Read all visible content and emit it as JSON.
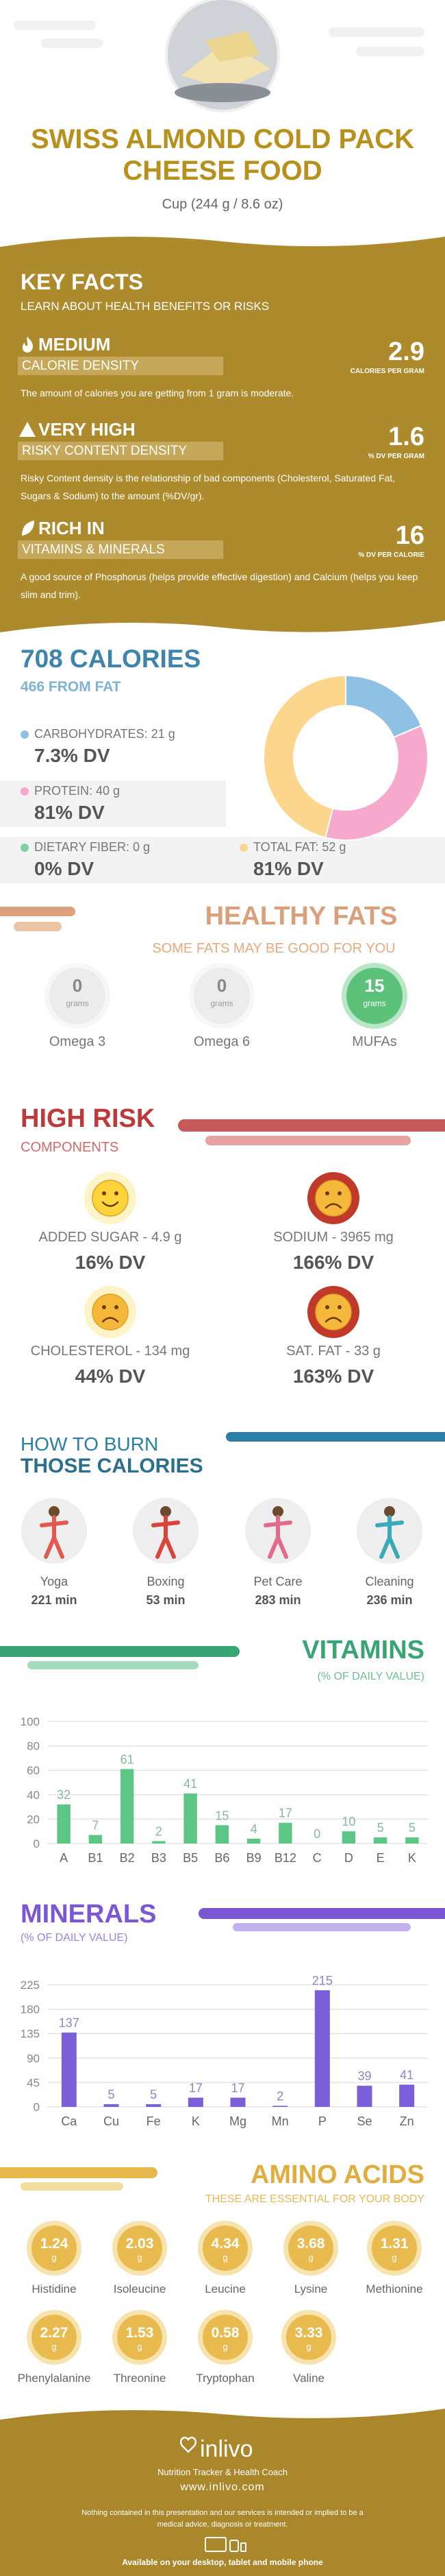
{
  "header": {
    "title": "SWISS ALMOND COLD PACK CHEESE FOOD",
    "subtitle": "Cup (244 g / 8.6 oz)"
  },
  "key_facts": {
    "title": "KEY FACTS",
    "subtitle": "LEARN ABOUT HEALTH BENEFITS OR RISKS",
    "items": [
      {
        "level": "MEDIUM",
        "label": "CALORIE DENSITY",
        "value": 2.9,
        "unit": "CALORIES PER GRAM",
        "text": "The amount of calories you are getting from 1 gram is moderate."
      },
      {
        "level": "VERY HIGH",
        "label": "RISKY CONTENT DENSITY",
        "value": 1.6,
        "unit": "% DV PER GRAM",
        "text": "Risky Content density is the relationship of bad components (Cholesterol, Saturated Fat, Sugars & Sodium) to the amount (%DV/gr)."
      },
      {
        "level": "RICH IN",
        "label": "VITAMINS & MINERALS",
        "value": 16,
        "unit": "% DV PER CALORIE",
        "text": "A good source of Phosphorus (helps provide effective digestion) and Calcium (helps you keep slim and trim)."
      }
    ]
  },
  "calories": {
    "title": "708 CALORIES",
    "subtitle": "466 FROM FAT",
    "nutrients": [
      {
        "label": "CARBOHYDRATES: 21 g",
        "dv": "7.3% DV",
        "color": "#8ec1e3"
      },
      {
        "label": "PROTEIN: 40 g",
        "dv": "81% DV",
        "color": "#f7a9cd"
      },
      {
        "label": "DIETARY FIBER: 0 g",
        "dv": "0% DV",
        "color": "#80d0a2"
      },
      {
        "label": "TOTAL FAT: 52 g",
        "dv": "81% DV",
        "color": "#fcd68c"
      }
    ],
    "donut": {
      "values": [
        21,
        40,
        52
      ],
      "colors": [
        "#8ec1e3",
        "#f7a9cd",
        "#fcd68c"
      ]
    }
  },
  "healthy_fats": {
    "title": "HEALTHY FATS",
    "subtitle": "SOME FATS MAY BE GOOD FOR YOU",
    "unit": "grams",
    "items": [
      {
        "value": 0,
        "name": "Omega 3"
      },
      {
        "value": 0,
        "name": "Omega 6"
      },
      {
        "value": 15,
        "name": "MUFAs"
      }
    ]
  },
  "high_risk": {
    "title": "HIGH RISK",
    "subtitle": "COMPONENTS",
    "items": [
      {
        "label": "ADDED SUGAR - 4.9 g",
        "dv": "16% DV",
        "mood": "happy",
        "color": "#fff4c8"
      },
      {
        "label": "SODIUM - 3965 mg",
        "dv": "166% DV",
        "mood": "sad",
        "color": "#c0392b"
      },
      {
        "label": "CHOLESTEROL - 134 mg",
        "dv": "44% DV",
        "mood": "sad",
        "color": "#fff4c8"
      },
      {
        "label": "SAT. FAT - 33 g",
        "dv": "163% DV",
        "mood": "sad",
        "color": "#c0392b"
      }
    ]
  },
  "burn": {
    "title_line1": "HOW TO BURN",
    "title_line2": "THOSE CALORIES",
    "items": [
      {
        "name": "Yoga",
        "time": "221 min"
      },
      {
        "name": "Boxing",
        "time": "53 min"
      },
      {
        "name": "Pet Care",
        "time": "283 min"
      },
      {
        "name": "Cleaning",
        "time": "236 min"
      }
    ]
  },
  "chart_data": [
    {
      "type": "bar",
      "title": "VITAMINS",
      "subtitle": "(% OF DAILY VALUE)",
      "categories": [
        "A",
        "B1",
        "B2",
        "B3",
        "B5",
        "B6",
        "B9",
        "B12",
        "C",
        "D",
        "E",
        "K"
      ],
      "values": [
        32,
        7,
        61,
        2,
        41,
        15,
        4,
        17,
        0,
        10,
        5,
        5
      ],
      "color": "#5cc784",
      "ylim": [
        0,
        100
      ],
      "yticks": [
        0,
        20,
        40,
        60,
        80,
        100
      ],
      "grid": true
    },
    {
      "type": "bar",
      "title": "MINERALS",
      "subtitle": "(% OF DAILY VALUE)",
      "categories": [
        "Ca",
        "Cu",
        "Fe",
        "K",
        "Mg",
        "Mn",
        "P",
        "Se",
        "Zn"
      ],
      "values": [
        137,
        5,
        5,
        17,
        17,
        2,
        215,
        39,
        41
      ],
      "color": "#7b5fd9",
      "ylim": [
        0,
        225
      ],
      "yticks": [
        0,
        45,
        90,
        135,
        180,
        225
      ],
      "grid": true
    }
  ],
  "amino": {
    "title": "AMINO ACIDS",
    "subtitle": "THESE ARE ESSENTIAL FOR YOUR BODY",
    "unit": "g",
    "items": [
      {
        "value": 1.24,
        "name": "Histidine"
      },
      {
        "value": 2.03,
        "name": "Isoleucine"
      },
      {
        "value": 4.34,
        "name": "Leucine"
      },
      {
        "value": 3.68,
        "name": "Lysine"
      },
      {
        "value": 1.31,
        "name": "Methionine"
      },
      {
        "value": 2.27,
        "name": "Phenylalanine"
      },
      {
        "value": 1.53,
        "name": "Threonine"
      },
      {
        "value": 0.58,
        "name": "Tryptophan"
      },
      {
        "value": 3.33,
        "name": "Valine"
      }
    ]
  },
  "footer": {
    "brand": "inlivo",
    "tagline": "Nutrition Tracker & Health Coach",
    "url": "www.inlivo.com",
    "disclaimer": "Nothing contained in this presentation and our services is intended or implied to be a medical advice, diagnosis or treatment.",
    "available": "Available on your desktop, tablet and mobile phone"
  }
}
